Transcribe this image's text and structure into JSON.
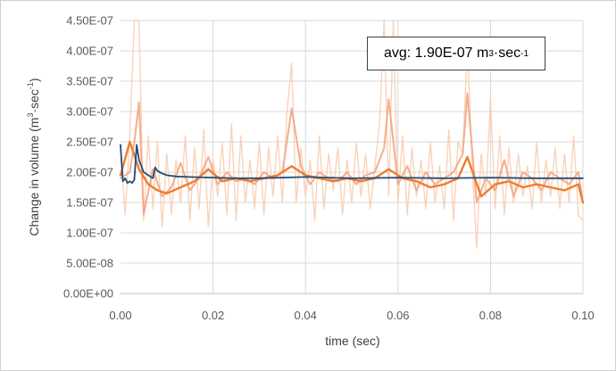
{
  "chart_data": {
    "type": "line",
    "title": "",
    "xlabel": "time (sec)",
    "ylabel_parts": [
      "Change in volume (m",
      "3",
      "·sec",
      "-1",
      ")"
    ],
    "xlim": [
      0,
      0.1
    ],
    "ylim": [
      0,
      4.5e-07
    ],
    "x_ticks": [
      "0.00",
      "0.02",
      "0.04",
      "0.06",
      "0.08",
      "0.10"
    ],
    "y_ticks": [
      "0.00E+00",
      "5.00E-08",
      "1.00E-07",
      "1.50E-07",
      "2.00E-07",
      "2.50E-07",
      "3.00E-07",
      "3.50E-07",
      "4.00E-07",
      "4.50E-07"
    ],
    "grid": true,
    "annotation_parts": [
      "avg: 1.90E-07 m",
      "3",
      "·sec",
      "-1"
    ],
    "colors": {
      "raw": "#f8cbad",
      "medium": "#f4a582",
      "smooth": "#ed7d31",
      "average": "#1f4e79",
      "grid": "#d9d9d9",
      "axis": "#bfbfbf"
    },
    "series": [
      {
        "role": "raw",
        "x": [
          0.0,
          0.001,
          0.002,
          0.003,
          0.004,
          0.005,
          0.006,
          0.007,
          0.008,
          0.009,
          0.01,
          0.011,
          0.012,
          0.013,
          0.014,
          0.015,
          0.016,
          0.017,
          0.018,
          0.019,
          0.02,
          0.021,
          0.022,
          0.023,
          0.024,
          0.025,
          0.026,
          0.027,
          0.028,
          0.029,
          0.03,
          0.031,
          0.032,
          0.033,
          0.034,
          0.035,
          0.036,
          0.037,
          0.038,
          0.039,
          0.04,
          0.041,
          0.042,
          0.043,
          0.044,
          0.045,
          0.046,
          0.047,
          0.048,
          0.049,
          0.05,
          0.051,
          0.052,
          0.053,
          0.054,
          0.055,
          0.056,
          0.057,
          0.058,
          0.059,
          0.06,
          0.061,
          0.062,
          0.063,
          0.064,
          0.065,
          0.066,
          0.067,
          0.068,
          0.069,
          0.07,
          0.071,
          0.072,
          0.073,
          0.074,
          0.075,
          0.076,
          0.077,
          0.078,
          0.079,
          0.08,
          0.081,
          0.082,
          0.083,
          0.084,
          0.085,
          0.086,
          0.087,
          0.088,
          0.089,
          0.09,
          0.091,
          0.092,
          0.093,
          0.094,
          0.095,
          0.096,
          0.097,
          0.098,
          0.099,
          0.1
        ],
        "y": [
          2.4e-07,
          1.3e-07,
          2.6e-07,
          4.5e-07,
          4.5e-07,
          1.2e-07,
          2.6e-07,
          1.4e-07,
          2.5e-07,
          1.1e-07,
          2.3e-07,
          1.3e-07,
          2.2e-07,
          1.5e-07,
          2.6e-07,
          1.2e-07,
          2.4e-07,
          1.4e-07,
          2.7e-07,
          1.1e-07,
          2.2e-07,
          1.6e-07,
          2.5e-07,
          1.3e-07,
          2.8e-07,
          1.2e-07,
          2.6e-07,
          1.5e-07,
          2.2e-07,
          1.4e-07,
          2.5e-07,
          1.3e-07,
          2.4e-07,
          1.6e-07,
          2.6e-07,
          1.5e-07,
          3e-07,
          3.8e-07,
          1.5e-07,
          2.4e-07,
          1.6e-07,
          2.2e-07,
          1.2e-07,
          2.6e-07,
          1.4e-07,
          2.3e-07,
          1.7e-07,
          2.4e-07,
          1.3e-07,
          2.2e-07,
          1.5e-07,
          2.5e-07,
          1.6e-07,
          2.3e-07,
          1.4e-07,
          2.1e-07,
          2.8e-07,
          4.5e-07,
          1.6e-07,
          4.5e-07,
          1.5e-07,
          2.6e-07,
          1.3e-07,
          2.4e-07,
          1.6e-07,
          2.2e-07,
          1.4e-07,
          2.5e-07,
          1.5e-07,
          2.1e-07,
          1.4e-07,
          2.7e-07,
          1.2e-07,
          2.5e-07,
          2.3e-07,
          4.1e-07,
          2.2e-07,
          7.5e-08,
          2.3e-07,
          1.6e-07,
          3.2e-07,
          1.4e-07,
          2.6e-07,
          1.3e-07,
          2.4e-07,
          1.5e-07,
          2.3e-07,
          1.6e-07,
          2.1e-07,
          1.4e-07,
          2.5e-07,
          1.5e-07,
          2.2e-07,
          1.6e-07,
          2.4e-07,
          1.4e-07,
          2.3e-07,
          1.5e-07,
          2.6e-07,
          1.3e-07,
          1.2e-07
        ]
      },
      {
        "role": "medium",
        "x": [
          0.0,
          0.002,
          0.003,
          0.004,
          0.005,
          0.007,
          0.009,
          0.011,
          0.013,
          0.015,
          0.017,
          0.019,
          0.021,
          0.023,
          0.025,
          0.027,
          0.029,
          0.031,
          0.033,
          0.035,
          0.037,
          0.039,
          0.041,
          0.043,
          0.045,
          0.047,
          0.049,
          0.051,
          0.053,
          0.055,
          0.057,
          0.058,
          0.06,
          0.062,
          0.064,
          0.066,
          0.068,
          0.07,
          0.072,
          0.074,
          0.075,
          0.077,
          0.079,
          0.081,
          0.083,
          0.085,
          0.087,
          0.089,
          0.091,
          0.093,
          0.095,
          0.097,
          0.099,
          0.1
        ],
        "y": [
          1.9e-07,
          2e-07,
          2.5e-07,
          3.15e-07,
          1.3e-07,
          2.05e-07,
          1.6e-07,
          1.75e-07,
          2.15e-07,
          1.7e-07,
          1.9e-07,
          2.25e-07,
          1.8e-07,
          2e-07,
          1.85e-07,
          1.9e-07,
          1.8e-07,
          2e-07,
          1.9e-07,
          2e-07,
          3.05e-07,
          2.1e-07,
          1.8e-07,
          2e-07,
          1.9e-07,
          1.85e-07,
          2e-07,
          1.8e-07,
          1.95e-07,
          2e-07,
          2.4e-07,
          3.2e-07,
          1.8e-07,
          2.1e-07,
          1.7e-07,
          2e-07,
          1.8e-07,
          1.9e-07,
          2e-07,
          2.3e-07,
          3.3e-07,
          1.5e-07,
          1.9e-07,
          1.7e-07,
          2.2e-07,
          1.6e-07,
          2e-07,
          1.9e-07,
          1.7e-07,
          2e-07,
          1.9e-07,
          1.8e-07,
          2e-07,
          1.5e-07
        ]
      },
      {
        "role": "smooth",
        "x": [
          0.0,
          0.002,
          0.004,
          0.006,
          0.008,
          0.01,
          0.013,
          0.016,
          0.019,
          0.022,
          0.025,
          0.028,
          0.031,
          0.034,
          0.037,
          0.04,
          0.043,
          0.046,
          0.049,
          0.052,
          0.055,
          0.058,
          0.061,
          0.064,
          0.067,
          0.07,
          0.073,
          0.075,
          0.078,
          0.081,
          0.084,
          0.087,
          0.09,
          0.093,
          0.096,
          0.099,
          0.1
        ],
        "y": [
          1.95e-07,
          2.5e-07,
          2.05e-07,
          1.8e-07,
          1.7e-07,
          1.65e-07,
          1.75e-07,
          1.85e-07,
          2.05e-07,
          1.85e-07,
          1.9e-07,
          1.85e-07,
          1.9e-07,
          1.95e-07,
          2.1e-07,
          1.95e-07,
          1.9e-07,
          1.85e-07,
          1.9e-07,
          1.85e-07,
          1.9e-07,
          2.05e-07,
          1.9e-07,
          1.85e-07,
          1.75e-07,
          1.8e-07,
          1.9e-07,
          2.25e-07,
          1.6e-07,
          1.8e-07,
          1.85e-07,
          1.75e-07,
          1.8e-07,
          1.75e-07,
          1.7e-07,
          1.8e-07,
          1.5e-07
        ]
      },
      {
        "role": "average",
        "x": [
          0.0,
          0.0005,
          0.001,
          0.0015,
          0.002,
          0.0025,
          0.003,
          0.0035,
          0.004,
          0.005,
          0.006,
          0.007,
          0.0075,
          0.008,
          0.009,
          0.01,
          0.012,
          0.015,
          0.02,
          0.025,
          0.03,
          0.04,
          0.05,
          0.06,
          0.07,
          0.08,
          0.09,
          0.1
        ],
        "y": [
          2.45e-07,
          1.85e-07,
          1.9e-07,
          1.82e-07,
          1.85e-07,
          1.82e-07,
          1.88e-07,
          2.45e-07,
          2.2e-07,
          2e-07,
          1.95e-07,
          1.9e-07,
          2.08e-07,
          2.02e-07,
          1.98e-07,
          1.95e-07,
          1.93e-07,
          1.92e-07,
          1.91e-07,
          1.9e-07,
          1.9e-07,
          1.92e-07,
          1.9e-07,
          1.91e-07,
          1.9e-07,
          1.91e-07,
          1.9e-07,
          1.9e-07
        ]
      }
    ]
  }
}
